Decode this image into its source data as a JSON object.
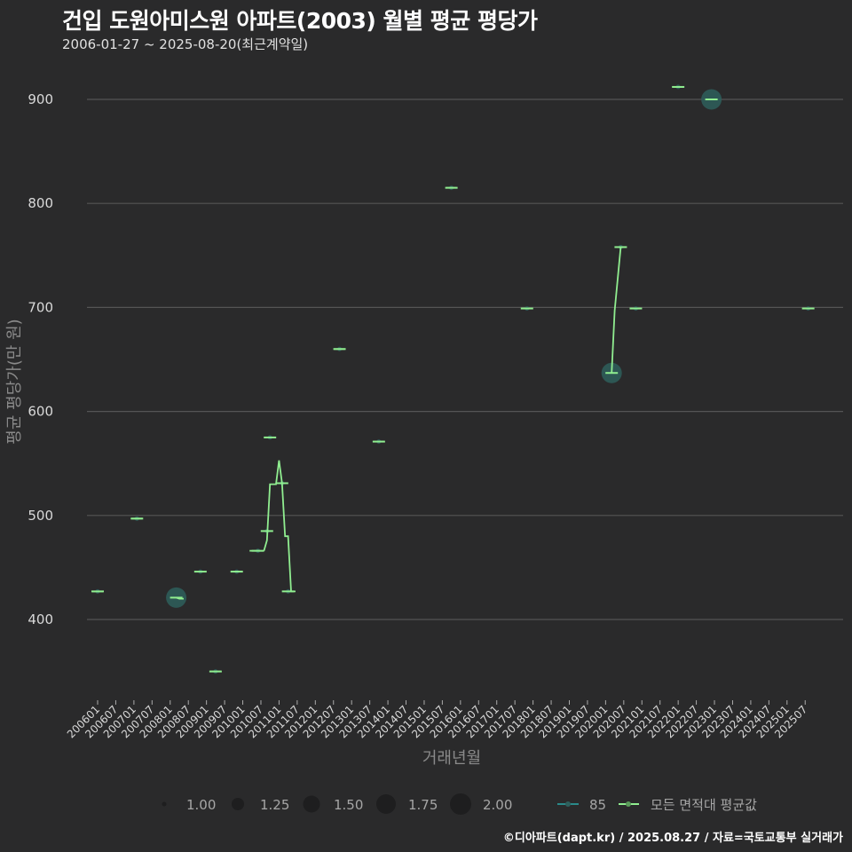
{
  "header": {
    "title": "건입 도원아미스원 아파트(2003) 월별 평균 평당가",
    "subtitle": "2006-01-27 ~ 2025-08-20(최근계약일)"
  },
  "caption": "©디아파트(dapt.kr) / 2025.08.27 / 자료=국토교통부 실거래가",
  "colors": {
    "background": "#2a2a2b",
    "grid": "#555555",
    "series_85": "#2a8a8a",
    "series_avg": "#90ee90",
    "bubble_fill": "#2e5f5c"
  },
  "chart_data": {
    "type": "scatter",
    "title": "건입 도원아미스원 아파트(2003) 월별 평균 평당가",
    "subtitle": "2006-01-27 ~ 2025-08-20(최근계약일)",
    "xlabel": "거래년월",
    "ylabel": "평균 평당가(만 원)",
    "ylim": [
      322,
      945
    ],
    "yticks": [
      400,
      500,
      600,
      700,
      800,
      900
    ],
    "xticks": [
      "200601",
      "200607",
      "200701",
      "200707",
      "200801",
      "200807",
      "200901",
      "200907",
      "201001",
      "201007",
      "201101",
      "201107",
      "201201",
      "201207",
      "201301",
      "201307",
      "201401",
      "201407",
      "201501",
      "201507",
      "201601",
      "201607",
      "201701",
      "201707",
      "201801",
      "201807",
      "201901",
      "201907",
      "202001",
      "202007",
      "202101",
      "202107",
      "202201",
      "202207",
      "202301",
      "202307",
      "202401",
      "202407",
      "202501",
      "202507"
    ],
    "grid": true,
    "legend": {
      "size_title": "",
      "sizes": [
        "1.00",
        "1.25",
        "1.50",
        "1.75",
        "2.00"
      ],
      "series": [
        "85",
        "모든 면적대 평균값"
      ],
      "position": "bottom"
    },
    "series": [
      {
        "name": "85",
        "points": [
          {
            "x": "200601",
            "y": 427,
            "size": 1
          },
          {
            "x": "200702",
            "y": 497,
            "size": 1
          },
          {
            "x": "200803",
            "y": 421,
            "size": 2
          },
          {
            "x": "200811",
            "y": 446,
            "size": 1
          },
          {
            "x": "200904",
            "y": 350,
            "size": 1
          },
          {
            "x": "200911",
            "y": 446,
            "size": 1
          },
          {
            "x": "201006",
            "y": 466,
            "size": 1
          },
          {
            "x": "201009",
            "y": 485,
            "size": 1
          },
          {
            "x": "201010",
            "y": 575,
            "size": 1
          },
          {
            "x": "201102",
            "y": 531,
            "size": 1
          },
          {
            "x": "201104",
            "y": 427,
            "size": 1
          },
          {
            "x": "201209",
            "y": 660,
            "size": 1
          },
          {
            "x": "201310",
            "y": 571,
            "size": 1
          },
          {
            "x": "201510",
            "y": 815,
            "size": 1
          },
          {
            "x": "201711",
            "y": 699,
            "size": 1
          },
          {
            "x": "202003",
            "y": 637,
            "size": 2
          },
          {
            "x": "202006",
            "y": 758,
            "size": 1
          },
          {
            "x": "202011",
            "y": 699,
            "size": 1
          },
          {
            "x": "202201",
            "y": 912,
            "size": 1
          },
          {
            "x": "202212",
            "y": 900,
            "size": 2
          },
          {
            "x": "202508",
            "y": 699,
            "size": 1
          }
        ]
      },
      {
        "name": "모든 면적대 평균값",
        "points": [
          {
            "x": "200601",
            "y": 427
          },
          {
            "x": "200702",
            "y": 497
          },
          {
            "x": "200803",
            "y": 421
          },
          {
            "x": "200804",
            "y": 420
          },
          {
            "x": "200904",
            "y": 350
          },
          {
            "x": "200911",
            "y": 446
          },
          {
            "x": "201005",
            "y": 466
          },
          {
            "x": "201008",
            "y": 466
          },
          {
            "x": "201009",
            "y": 476
          },
          {
            "x": "201010",
            "y": 530
          },
          {
            "x": "201012",
            "y": 530
          },
          {
            "x": "201101",
            "y": 553
          },
          {
            "x": "201102",
            "y": 531
          },
          {
            "x": "201103",
            "y": 480
          },
          {
            "x": "201104",
            "y": 480
          },
          {
            "x": "201105",
            "y": 427
          },
          {
            "x": "201209",
            "y": 660
          },
          {
            "x": "201310",
            "y": 571
          },
          {
            "x": "201510",
            "y": 815
          },
          {
            "x": "201711",
            "y": 699
          },
          {
            "x": "202003",
            "y": 637
          },
          {
            "x": "202004",
            "y": 697
          },
          {
            "x": "202006",
            "y": 758
          },
          {
            "x": "202011",
            "y": 699
          },
          {
            "x": "202201",
            "y": 912
          },
          {
            "x": "202212",
            "y": 900
          },
          {
            "x": "202508",
            "y": 699
          }
        ]
      }
    ]
  }
}
